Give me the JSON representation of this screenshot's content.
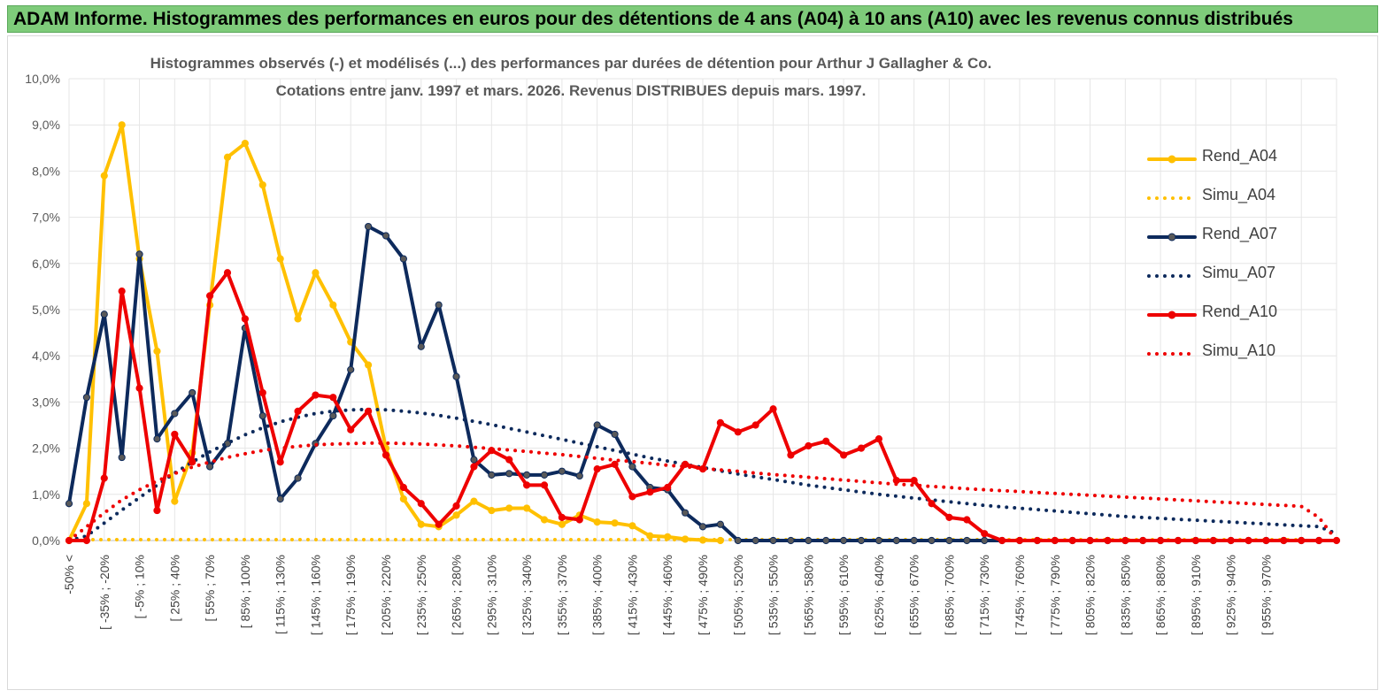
{
  "banner": {
    "title": "ADAM Informe. Histogrammes des performances en euros pour des détentions de 4 ans (A04) à 10 ans (A10) avec les revenus connus distribués"
  },
  "colors": {
    "banner_bg": "#7ecb7a",
    "a04": "#ffc000",
    "a07": "#0d2a5c",
    "a10": "#ee0000",
    "grid": "#e6e6e6",
    "marker_a07": "#595959"
  },
  "chart_data": {
    "type": "line",
    "title": "Histogrammes observés (-) et modélisés (...) des performances par durées de détention pour Arthur J Gallagher & Co.",
    "subtitle": "Cotations entre janv. 1997 et mars. 2026. Revenus DISTRIBUES depuis mars. 1997.",
    "xlabel": "",
    "ylabel": "",
    "ylim": [
      0,
      10
    ],
    "y_ticks": [
      "0,0%",
      "1,0%",
      "2,0%",
      "3,0%",
      "4,0%",
      "5,0%",
      "6,0%",
      "7,0%",
      "8,0%",
      "9,0%",
      "10,0%"
    ],
    "grid": true,
    "legend_position": "right",
    "x_tick_labels": [
      "-50% <",
      "[ -35% ; -20%",
      "[ -5% ; 10%",
      "[ 25% ; 40%",
      "[ 55% ; 70%",
      "[ 85% ; 100%",
      "[ 115% ; 130%",
      "[ 145% ; 160%",
      "[ 175% ; 190%",
      "[ 205% ; 220%",
      "[ 235% ; 250%",
      "[ 265% ; 280%",
      "[ 295% ; 310%",
      "[ 325% ; 340%",
      "[ 355% ; 370%",
      "[ 385% ; 400%",
      "[ 415% ; 430%",
      "[ 445% ; 460%",
      "[ 475% ; 490%",
      "[ 505% ; 520%",
      "[ 535% ; 550%",
      "[ 565% ; 580%",
      "[ 595% ; 610%",
      "[ 625% ; 640%",
      "[ 655% ; 670%",
      "[ 685% ; 700%",
      "[ 715% ; 730%",
      "[ 745% ; 760%",
      "[ 775% ; 790%",
      "[ 805% ; 820%",
      "[ 835% ; 850%",
      "[ 865% ; 880%",
      "[ 895% ; 910%",
      "[ 925% ; 940%",
      "[ 955% ; 970%"
    ],
    "series": [
      {
        "name": "Rend_A04",
        "style": "solid",
        "color": "#ffc000",
        "values": [
          0.0,
          0.8,
          7.9,
          9.0,
          6.1,
          4.1,
          0.85,
          1.9,
          5.1,
          8.3,
          8.6,
          7.7,
          6.1,
          4.8,
          5.8,
          5.1,
          4.3,
          3.8,
          2.0,
          0.9,
          0.35,
          0.3,
          0.55,
          0.85,
          0.65,
          0.7,
          0.7,
          0.45,
          0.35,
          0.55,
          0.4,
          0.38,
          0.32,
          0.1,
          0.08,
          0.03,
          0.01,
          0.0
        ]
      },
      {
        "name": "Simu_A04",
        "style": "dotted",
        "color": "#ffc000",
        "values": [
          0.0,
          0.02,
          0.02,
          0.02,
          0.02,
          0.02,
          0.02,
          0.02,
          0.02,
          0.02,
          0.02,
          0.02,
          0.02,
          0.02,
          0.02,
          0.02,
          0.02,
          0.02,
          0.02,
          0.02,
          0.02,
          0.02,
          0.02,
          0.02,
          0.02,
          0.02,
          0.02,
          0.02,
          0.02,
          0.02,
          0.02,
          0.02,
          0.02,
          0.02,
          0.02,
          0.02,
          0.02,
          0.02,
          0.02,
          0.02,
          0.02,
          0.02,
          0.02,
          0.02,
          0.02,
          0.02,
          0.02,
          0.02,
          0.02,
          0.02,
          0.02,
          0.02,
          0.02,
          0.02,
          0.02,
          0.02,
          0.02,
          0.02,
          0.02,
          0.02,
          0.02,
          0.02,
          0.02,
          0.02,
          0.02,
          0.02,
          0.02,
          0.02,
          0.02,
          0.02,
          0.02
        ]
      },
      {
        "name": "Rend_A07",
        "style": "solid",
        "color": "#0d2a5c",
        "values": [
          0.8,
          3.1,
          4.9,
          1.8,
          6.2,
          2.2,
          2.75,
          3.2,
          1.6,
          2.1,
          4.6,
          2.7,
          0.9,
          1.35,
          2.1,
          2.7,
          3.7,
          6.8,
          6.6,
          6.1,
          4.2,
          5.1,
          3.55,
          1.75,
          1.42,
          1.45,
          1.42,
          1.42,
          1.5,
          1.4,
          2.5,
          2.3,
          1.6,
          1.15,
          1.1,
          0.6,
          0.3,
          0.35,
          0.0,
          0.0,
          0.0,
          0.0,
          0.0,
          0.0,
          0.0,
          0.0,
          0.0,
          0.0,
          0.0,
          0.0,
          0.0,
          0.0,
          0.0,
          0.0,
          0.0,
          0.0,
          0.0,
          0.0,
          0.0,
          0.0,
          0.0,
          0.0,
          0.0,
          0.0,
          0.0,
          0.0,
          0.0,
          0.0,
          0.0,
          0.0,
          0.0,
          0.0
        ]
      },
      {
        "name": "Simu_A07",
        "style": "dotted",
        "color": "#0d2a5c",
        "values": [
          0.0,
          0.1,
          0.38,
          0.66,
          0.93,
          1.2,
          1.46,
          1.7,
          1.92,
          2.11,
          2.29,
          2.44,
          2.57,
          2.67,
          2.75,
          2.8,
          2.83,
          2.84,
          2.83,
          2.8,
          2.76,
          2.71,
          2.65,
          2.58,
          2.51,
          2.43,
          2.35,
          2.27,
          2.19,
          2.11,
          2.03,
          1.95,
          1.87,
          1.79,
          1.72,
          1.65,
          1.58,
          1.51,
          1.44,
          1.38,
          1.32,
          1.26,
          1.2,
          1.15,
          1.1,
          1.05,
          1.0,
          0.96,
          0.92,
          0.88,
          0.84,
          0.8,
          0.76,
          0.73,
          0.7,
          0.67,
          0.64,
          0.61,
          0.58,
          0.55,
          0.52,
          0.5,
          0.48,
          0.46,
          0.44,
          0.42,
          0.4,
          0.38,
          0.36,
          0.34,
          0.32,
          0.3,
          0.15,
          0.0
        ]
      },
      {
        "name": "Rend_A10",
        "style": "solid",
        "color": "#ee0000",
        "values": [
          0.0,
          0.0,
          1.35,
          5.4,
          3.3,
          0.65,
          2.3,
          1.7,
          5.3,
          5.8,
          4.8,
          3.2,
          1.7,
          2.8,
          3.15,
          3.1,
          2.4,
          2.8,
          1.85,
          1.15,
          0.8,
          0.35,
          0.75,
          1.6,
          1.95,
          1.75,
          1.2,
          1.2,
          0.5,
          0.45,
          1.55,
          1.65,
          0.95,
          1.05,
          1.15,
          1.65,
          1.55,
          2.55,
          2.35,
          2.5,
          2.85,
          1.85,
          2.05,
          2.15,
          1.85,
          2.0,
          2.2,
          1.3,
          1.3,
          0.8,
          0.5,
          0.45,
          0.15,
          0.0,
          0.0,
          0.0,
          0.0,
          0.0,
          0.0,
          0.0,
          0.0,
          0.0,
          0.0,
          0.0,
          0.0,
          0.0,
          0.0,
          0.0,
          0.0,
          0.0,
          0.0,
          0.0,
          0.0
        ]
      },
      {
        "name": "Simu_A10",
        "style": "dotted",
        "color": "#ee0000",
        "values": [
          0.0,
          0.3,
          0.6,
          0.88,
          1.1,
          1.29,
          1.45,
          1.59,
          1.7,
          1.8,
          1.88,
          1.95,
          2.0,
          2.04,
          2.07,
          2.09,
          2.1,
          2.11,
          2.11,
          2.1,
          2.09,
          2.07,
          2.05,
          2.02,
          1.99,
          1.96,
          1.93,
          1.89,
          1.86,
          1.82,
          1.78,
          1.74,
          1.71,
          1.67,
          1.63,
          1.6,
          1.56,
          1.53,
          1.5,
          1.46,
          1.43,
          1.4,
          1.37,
          1.34,
          1.31,
          1.28,
          1.25,
          1.22,
          1.2,
          1.17,
          1.15,
          1.12,
          1.1,
          1.08,
          1.06,
          1.04,
          1.02,
          1.0,
          0.98,
          0.96,
          0.94,
          0.92,
          0.9,
          0.88,
          0.86,
          0.84,
          0.82,
          0.8,
          0.78,
          0.76,
          0.74,
          0.5,
          0.0
        ]
      }
    ]
  }
}
